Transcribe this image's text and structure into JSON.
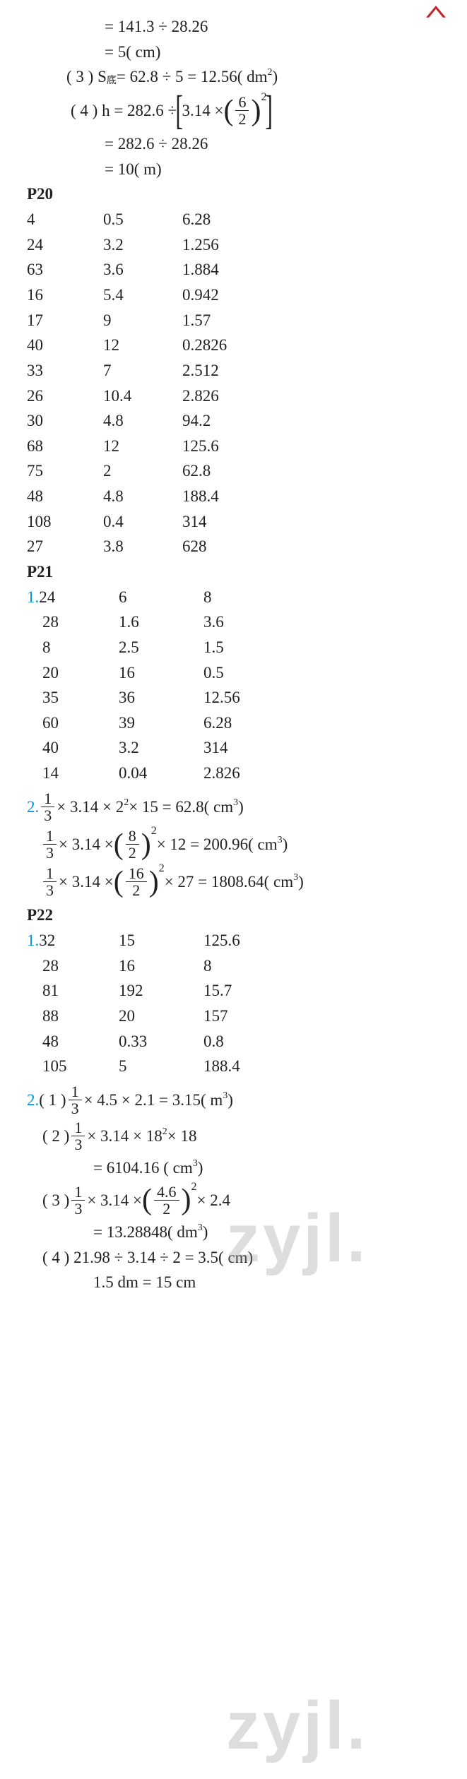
{
  "top_calcs": {
    "l1": "= 141.3 ÷ 28.26",
    "l2": "= 5( cm)",
    "l3a": "( 3 ) S",
    "l3sub": "底",
    "l3b": " = 62.8 ÷ 5 = 12.56( dm",
    "l3c": " )",
    "l4a": "( 4 ) h  = 282.6 ÷ ",
    "l4_frac_n": "6",
    "l4_frac_d": "2",
    "l4_314": "3.14 ×",
    "l5": "= 282.6 ÷ 28.26",
    "l6": "= 10( m)"
  },
  "headings": {
    "p20": "P20",
    "p21": "P21",
    "p22": "P22"
  },
  "p20_rows": [
    [
      "4",
      "0.5",
      "6.28"
    ],
    [
      "24",
      "3.2",
      "1.256"
    ],
    [
      "63",
      "3.6",
      "1.884"
    ],
    [
      "16",
      "5.4",
      "0.942"
    ],
    [
      "17",
      "9",
      "1.57"
    ],
    [
      "40",
      "12",
      "0.2826"
    ],
    [
      "33",
      "7",
      "2.512"
    ],
    [
      "26",
      "10.4",
      "2.826"
    ],
    [
      "30",
      "4.8",
      "94.2"
    ],
    [
      "68",
      "12",
      "125.6"
    ],
    [
      "75",
      "2",
      "62.8"
    ],
    [
      "48",
      "4.8",
      "188.4"
    ],
    [
      "108",
      "0.4",
      "314"
    ],
    [
      "27",
      "3.8",
      "628"
    ]
  ],
  "p21_q1_rows": [
    [
      "24",
      "6",
      "8"
    ],
    [
      "28",
      "1.6",
      "3.6"
    ],
    [
      "8",
      "2.5",
      "1.5"
    ],
    [
      "20",
      "16",
      "0.5"
    ],
    [
      "35",
      "36",
      "12.56"
    ],
    [
      "60",
      "39",
      "6.28"
    ],
    [
      "40",
      "3.2",
      "314"
    ],
    [
      "14",
      "0.04",
      "2.826"
    ]
  ],
  "p21_q2": {
    "l1a": " × 3.14 × 2",
    "l1b": " × 15 = 62.8( cm",
    "l1c": " )",
    "l2a": " × 3.14 × ",
    "l2_fn": "8",
    "l2_fd": "2",
    "l2b": "× 12 = 200.96( cm",
    "l2c": " )",
    "l3a": " × 3.14 × ",
    "l3_fn": "16",
    "l3_fd": "2",
    "l3b": " × 27 = 1808.64( cm",
    "l3c": " )"
  },
  "p22_q1_rows": [
    [
      "32",
      "15",
      "125.6"
    ],
    [
      "28",
      "16",
      "8"
    ],
    [
      "81",
      "192",
      "15.7"
    ],
    [
      "88",
      "20",
      "157"
    ],
    [
      "48",
      "0.33",
      "0.8"
    ],
    [
      "105",
      "5",
      "188.4"
    ]
  ],
  "p22_q2": {
    "l1a": "( 1 ) ",
    "l1b": " × 4.5 × 2.1 = 3.15( m",
    "l1c": " )",
    "l2a": "( 2 ) ",
    "l2b": " × 3.14 × 18",
    "l2c": " × 18",
    "l2r": "= 6104.16 ( cm",
    "l2rc": " )",
    "l3a": "( 3 ) ",
    "l3b": " × 3.14 × ",
    "l3_fn": "4.6",
    "l3_fd": "2",
    "l3c": " × 2.4",
    "l3r": "= 13.28848( dm",
    "l3rc": " )",
    "l4": "( 4 ) 21.98 ÷ 3.14 ÷ 2 = 3.5( cm)",
    "l5": "1.5 dm = 15 cm"
  },
  "labels": {
    "q1": "1.",
    "q2": "2."
  },
  "frac13": {
    "n": "1",
    "d": "3"
  },
  "sup2": "2",
  "sup3": "3"
}
